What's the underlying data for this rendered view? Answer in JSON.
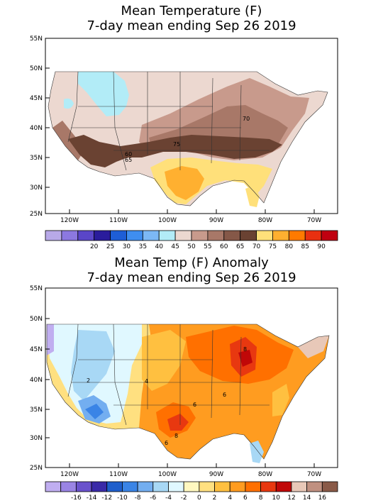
{
  "maps": [
    {
      "title_line1": "Mean Temperature (F)",
      "title_line2": "7-day mean ending Sep 26 2019",
      "lat_labels": [
        "55N",
        "50N",
        "45N",
        "40N",
        "35N",
        "30N",
        "25N"
      ],
      "lon_labels": [
        "120W",
        "110W",
        "100W",
        "90W",
        "80W",
        "70W"
      ],
      "colorbar": {
        "colors": [
          "#b8a9e8",
          "#8c78e0",
          "#5a46c8",
          "#2a1c9c",
          "#1e5ed6",
          "#3f8ef0",
          "#7cb8f5",
          "#b2ecf7",
          "#ecd8d0",
          "#c89a8c",
          "#a87868",
          "#855848",
          "#6a4232",
          "#ffe07a",
          "#ffb030",
          "#ff7a00",
          "#e83010",
          "#c00010"
        ],
        "labels": [
          "20",
          "25",
          "30",
          "35",
          "40",
          "45",
          "50",
          "55",
          "60",
          "65",
          "70",
          "75",
          "80",
          "85",
          "90"
        ]
      },
      "contour_labels": [
        "70",
        "75",
        "60",
        "65"
      ]
    },
    {
      "title_line1": "Mean Temp (F) Anomaly",
      "title_line2": "7-day mean ending Sep 26 2019",
      "lat_labels": [
        "55N",
        "50N",
        "45N",
        "40N",
        "35N",
        "30N",
        "25N"
      ],
      "lon_labels": [
        "120W",
        "110W",
        "100W",
        "90W",
        "80W",
        "70W"
      ],
      "colorbar": {
        "colors": [
          "#c0aef0",
          "#9a84e4",
          "#6a52cc",
          "#3a2aa8",
          "#1f5fcc",
          "#3a84e6",
          "#73aef0",
          "#a8d8f5",
          "#e0f8ff",
          "#fff8c0",
          "#ffe080",
          "#ffc040",
          "#ff9c20",
          "#ff7000",
          "#e83810",
          "#c00808",
          "#e8c8b8",
          "#c09080",
          "#8a5a48"
        ],
        "labels": [
          "-16",
          "-14",
          "-12",
          "-10",
          "-8",
          "-6",
          "-4",
          "-2",
          "0",
          "2",
          "4",
          "6",
          "8",
          "10",
          "12",
          "14",
          "16"
        ]
      },
      "contour_labels": [
        "4",
        "6",
        "6",
        "8",
        "8",
        "2",
        "6"
      ]
    }
  ]
}
